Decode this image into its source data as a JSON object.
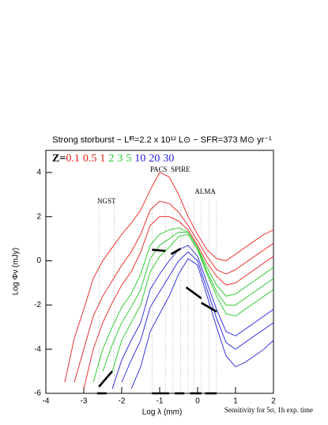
{
  "chart_data": {
    "type": "line",
    "title": "Strong storburst − Lᴵᴿ=2.2 x 10¹² L⊙ − SFR=373 M⊙ yr⁻¹",
    "legend_prefix": "Z=",
    "xlabel": "Log λ (mm)",
    "ylabel": "Log Φν (mJy)",
    "footnote": "Sensitivity for  5σ, 1h exp. time",
    "xlim": [
      -4,
      2
    ],
    "xticks": [
      -4,
      -3,
      -2,
      -1,
      0,
      1,
      2
    ],
    "ylim": [
      -6,
      5
    ],
    "yticks": [
      -6,
      -4,
      -2,
      0,
      2,
      4
    ],
    "x": [
      -4,
      -3.75,
      -3.5,
      -3.25,
      -3,
      -2.75,
      -2.5,
      -2.25,
      -2,
      -1.75,
      -1.5,
      -1.25,
      -1,
      -0.75,
      -0.5,
      -0.25,
      0,
      0.25,
      0.5,
      0.75,
      1,
      1.25,
      1.5,
      1.75,
      2
    ],
    "series": [
      {
        "name": "0.1",
        "color": "#e8201c",
        "values": [
          null,
          null,
          -5.5,
          -3.5,
          -2.2,
          -0.8,
          0,
          0.6,
          1.2,
          1.7,
          2.3,
          3.2,
          4.0,
          3.8,
          3.0,
          2.0,
          1.2,
          0.5,
          0.1,
          0,
          0.3,
          0.6,
          0.9,
          1.2,
          1.4
        ]
      },
      {
        "name": "0.5",
        "color": "#e8201c",
        "values": [
          null,
          null,
          null,
          -5.5,
          -4,
          -2.5,
          -1.6,
          -0.9,
          -0.2,
          0.4,
          1.2,
          2.3,
          2.7,
          2.6,
          2.2,
          1.6,
          0.9,
          0.2,
          -0.4,
          -0.6,
          -0.4,
          -0.1,
          0.2,
          0.5,
          0.8
        ]
      },
      {
        "name": "1",
        "color": "#e8201c",
        "values": [
          null,
          null,
          null,
          null,
          -5.8,
          -4,
          -2.8,
          -1.9,
          -1.1,
          -0.5,
          0.4,
          1.6,
          2.0,
          2.0,
          1.8,
          1.4,
          0.7,
          -0.1,
          -0.7,
          -1.1,
          -1.0,
          -0.7,
          -0.4,
          -0.1,
          0.2
        ]
      },
      {
        "name": "2",
        "color": "#22c822",
        "values": [
          null,
          null,
          null,
          null,
          null,
          -5.5,
          -4,
          -3,
          -2.1,
          -1.5,
          -0.6,
          0.7,
          1.2,
          1.4,
          1.5,
          1.3,
          0.6,
          -0.3,
          -1.1,
          -1.6,
          -1.5,
          -1.2,
          -0.9,
          -0.6,
          -0.3
        ]
      },
      {
        "name": "3",
        "color": "#22c822",
        "values": [
          null,
          null,
          null,
          null,
          null,
          null,
          -5,
          -3.8,
          -2.8,
          -2.1,
          -1.3,
          0.1,
          0.7,
          1.0,
          1.3,
          1.3,
          0.6,
          -0.5,
          -1.4,
          -2.0,
          -2.0,
          -1.7,
          -1.4,
          -1.1,
          -0.8
        ]
      },
      {
        "name": "5",
        "color": "#22c822",
        "values": [
          null,
          null,
          null,
          null,
          null,
          null,
          null,
          -5,
          -3.6,
          -2.8,
          -2.0,
          -0.5,
          0.2,
          0.6,
          1.1,
          1.2,
          0.5,
          -0.6,
          -1.6,
          -2.4,
          -2.5,
          -2.2,
          -1.9,
          -1.6,
          -1.3
        ]
      },
      {
        "name": "10",
        "color": "#2222d8",
        "values": [
          null,
          null,
          null,
          null,
          null,
          null,
          null,
          -5.8,
          -4.5,
          -3.6,
          -2.8,
          -1.3,
          -0.6,
          0.0,
          0.5,
          0.7,
          0.2,
          -1.0,
          -2.2,
          -3.2,
          -3.4,
          -3.1,
          -2.8,
          -2.5,
          -2.2
        ]
      },
      {
        "name": "20",
        "color": "#2222d8",
        "values": [
          null,
          null,
          null,
          null,
          null,
          null,
          null,
          null,
          -5.5,
          -4.5,
          -3.6,
          -2.1,
          -1.4,
          -0.7,
          0.0,
          0.4,
          0.0,
          -1.3,
          -2.6,
          -3.7,
          -4.0,
          -3.7,
          -3.4,
          -3.1,
          -2.8
        ]
      },
      {
        "name": "30",
        "color": "#2222d8",
        "values": [
          null,
          null,
          null,
          null,
          null,
          null,
          null,
          null,
          null,
          -5.8,
          -4.8,
          -3.2,
          -2.4,
          -1.6,
          -0.6,
          0.1,
          -0.2,
          -1.6,
          -3.0,
          -4.3,
          -4.8,
          -4.6,
          -4.3,
          -4.0,
          -3.6
        ]
      }
    ],
    "instruments": [
      {
        "name": "NGST",
        "lines": [
          -2.6,
          -2.2
        ]
      },
      {
        "name": "PACS",
        "lines": [
          -1.2,
          -0.85
        ]
      },
      {
        "name": "SPIRE",
        "lines": [
          -0.65,
          -0.45,
          -0.25
        ]
      },
      {
        "name": "ALMA",
        "lines": [
          -0.1,
          0.1,
          0.3,
          0.5
        ]
      }
    ],
    "sensitivity": [
      {
        "x": [
          -2.6,
          -2.25
        ],
        "y": [
          -5.7,
          -5.0
        ]
      },
      {
        "x": [
          -2.65,
          -2.4
        ],
        "y": [
          -6,
          -6
        ]
      },
      {
        "x": [
          -1.2,
          -0.85
        ],
        "y": [
          0.5,
          0.45
        ]
      },
      {
        "x": [
          -0.7,
          -0.45
        ],
        "y": [
          0.3,
          0.55
        ]
      },
      {
        "x": [
          -0.3,
          0.1
        ],
        "y": [
          -1.2,
          -1.7
        ]
      },
      {
        "x": [
          0.1,
          0.5
        ],
        "y": [
          -1.9,
          -2.3
        ]
      },
      {
        "x": [
          -1.2,
          -0.75
        ],
        "y": [
          -6,
          -6
        ]
      },
      {
        "x": [
          -0.6,
          -0.35
        ],
        "y": [
          -6,
          -6
        ]
      },
      {
        "x": [
          -0.2,
          0.1
        ],
        "y": [
          -6,
          -6
        ]
      },
      {
        "x": [
          0.2,
          0.5
        ],
        "y": [
          -6,
          -6
        ]
      }
    ]
  }
}
